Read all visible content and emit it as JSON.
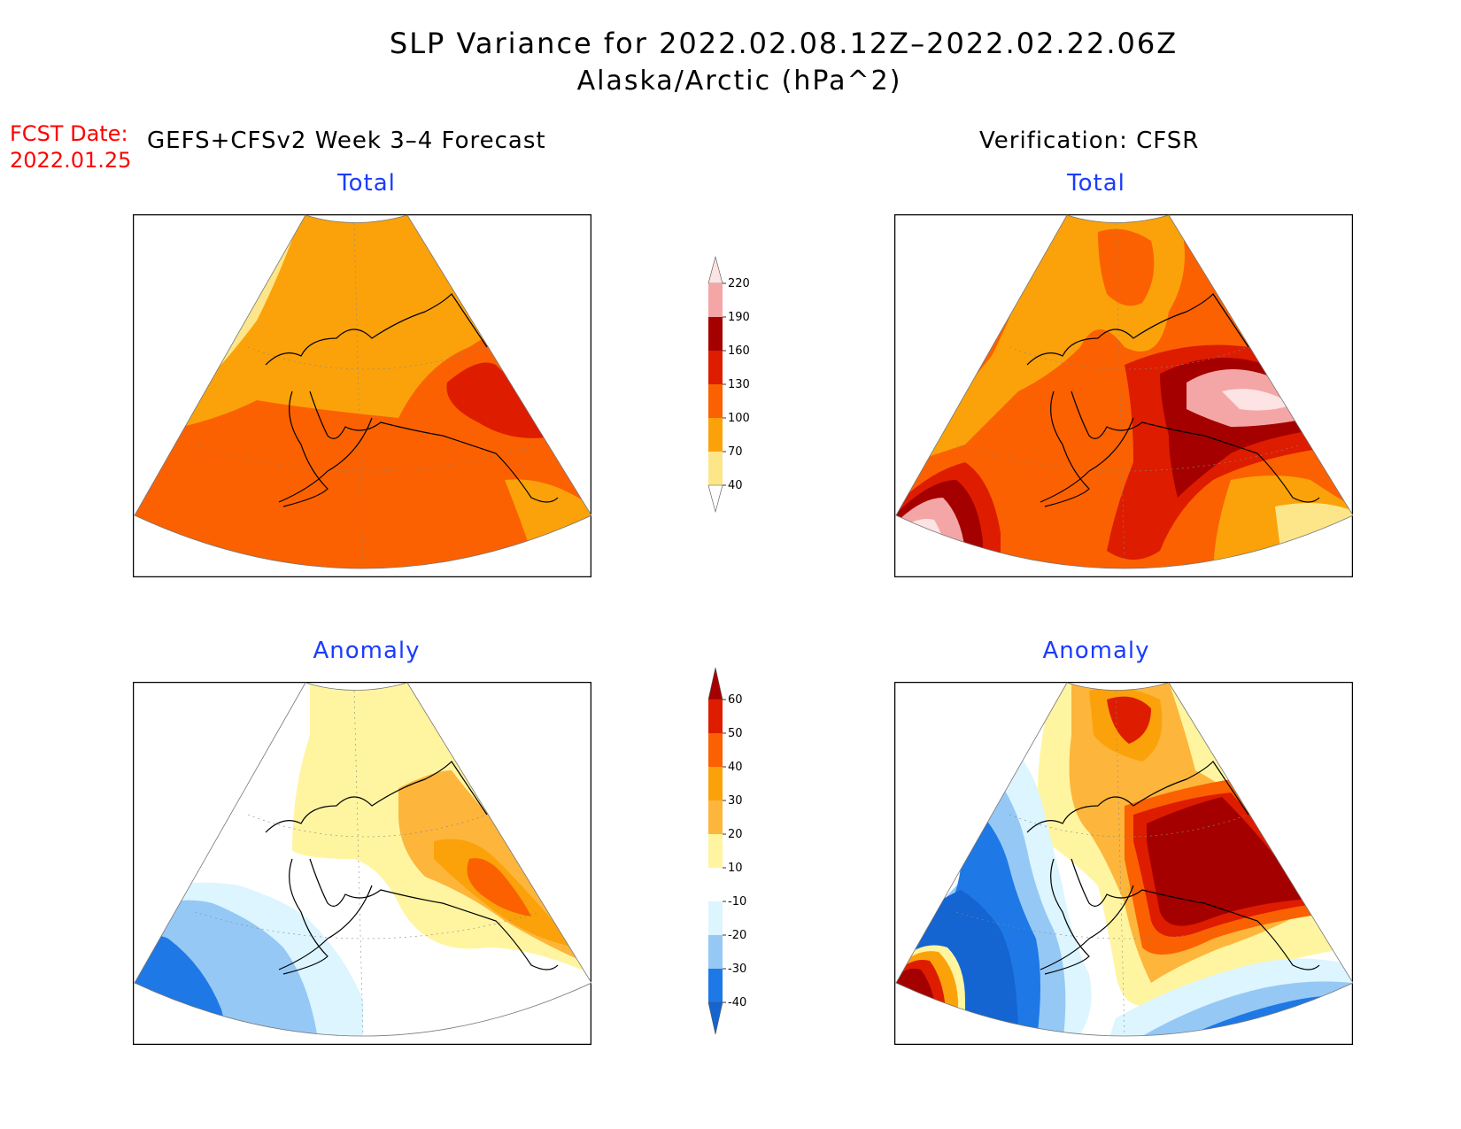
{
  "header": {
    "title": "SLP Variance for 2022.02.08.12Z–2022.02.22.06Z",
    "subtitle": "Alaska/Arctic (hPa^2)",
    "fcst_date_label": "FCST Date:",
    "fcst_date_value": "2022.01.25",
    "left_heading": "GEFS+CFSv2 Week 3–4 Forecast",
    "right_heading": "Verification: CFSR"
  },
  "panels": {
    "forecast_total_title": "Total",
    "verification_total_title": "Total",
    "forecast_anomaly_title": "Anomaly",
    "verification_anomaly_title": "Anomaly"
  },
  "colorbars": {
    "total": {
      "levels": [
        "40",
        "70",
        "100",
        "130",
        "160",
        "190",
        "220"
      ],
      "colors": [
        "#ffffff",
        "#fde68a",
        "#fba20a",
        "#fb6100",
        "#de1c00",
        "#a50000",
        "#f4a6a6",
        "#fde3e3"
      ]
    },
    "anomaly": {
      "levels": [
        "-40",
        "-30",
        "-20",
        "-10",
        "10",
        "20",
        "30",
        "40",
        "50",
        "60"
      ],
      "colors": [
        "#1464d2",
        "#1e78e6",
        "#96c8f6",
        "#dcf5ff",
        "#ffffff",
        "#fff5a0",
        "#fdb53c",
        "#fba20a",
        "#fb6100",
        "#de1c00",
        "#a50000"
      ]
    }
  },
  "colors": {
    "title_blue": "#1a3cff",
    "fcst_red": "#ff0000"
  }
}
